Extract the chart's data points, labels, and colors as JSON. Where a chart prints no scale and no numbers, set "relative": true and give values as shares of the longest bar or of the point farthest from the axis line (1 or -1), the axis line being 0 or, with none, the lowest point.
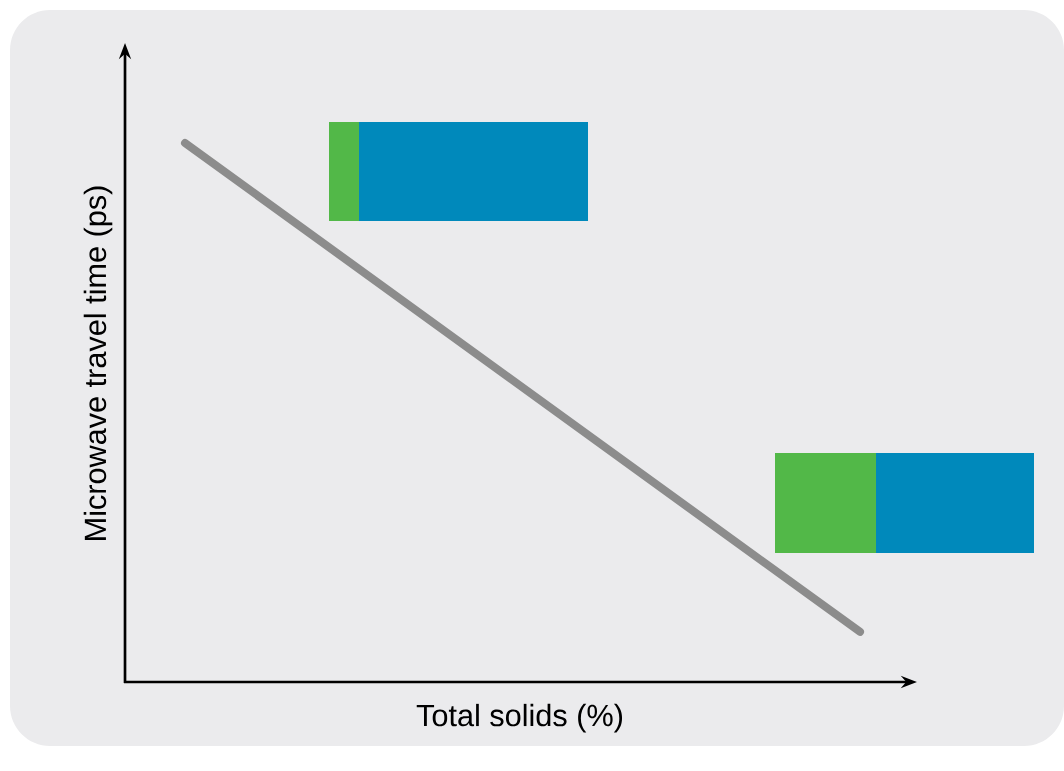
{
  "chart_data": {
    "type": "line",
    "xlabel": "Total solids (%)",
    "ylabel": "Microwave travel time (ps)",
    "relative": true,
    "categories": [
      null,
      null
    ],
    "series": [
      {
        "color": "#8c8c8c",
        "values": [
          1,
          0.093
        ]
      }
    ],
    "marker": "none",
    "line_style": "solid"
  }
}
